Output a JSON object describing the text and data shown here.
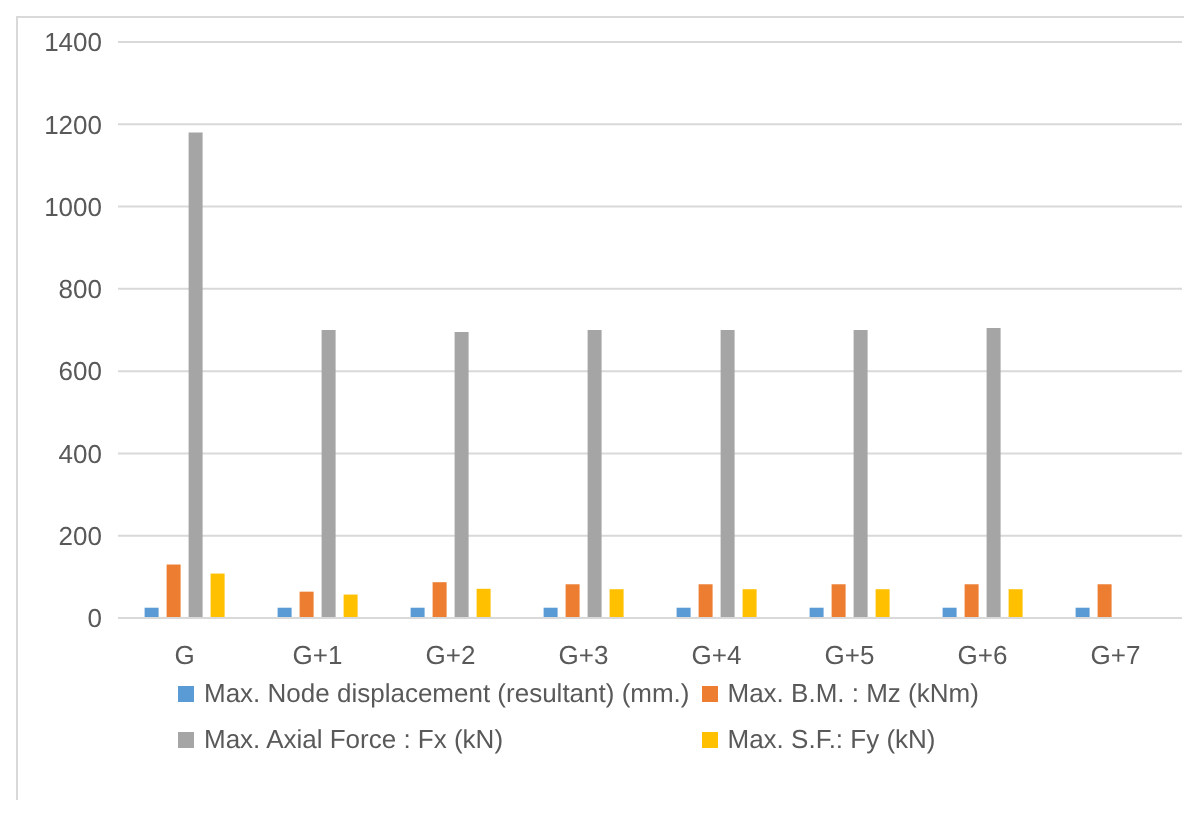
{
  "chart_data": {
    "type": "bar",
    "categories": [
      "G",
      "G+1",
      "G+2",
      "G+3",
      "G+4",
      "G+5",
      "G+6",
      "G+7"
    ],
    "series": [
      {
        "name": "Max. Node displacement (resultant) (mm.)",
        "color": "#5b9bd5",
        "values": [
          25,
          25,
          25,
          25,
          25,
          25,
          25,
          25
        ]
      },
      {
        "name": "Max. B.M. : Mz (kNm)",
        "color": "#ed7d31",
        "values": [
          130,
          64,
          87,
          82,
          82,
          82,
          82,
          82
        ]
      },
      {
        "name": "Max. Axial Force : Fx (kN)",
        "color": "#a5a5a5",
        "values": [
          1180,
          700,
          695,
          700,
          700,
          700,
          705,
          null
        ]
      },
      {
        "name": "Max. S.F.: Fy (kN)",
        "color": "#ffc000",
        "values": [
          108,
          57,
          71,
          70,
          70,
          70,
          70,
          null
        ]
      }
    ],
    "ylim": [
      0,
      1400
    ],
    "yticks": [
      0,
      200,
      400,
      600,
      800,
      1000,
      1200,
      1400
    ],
    "grid": "y",
    "legend": "bottom"
  }
}
